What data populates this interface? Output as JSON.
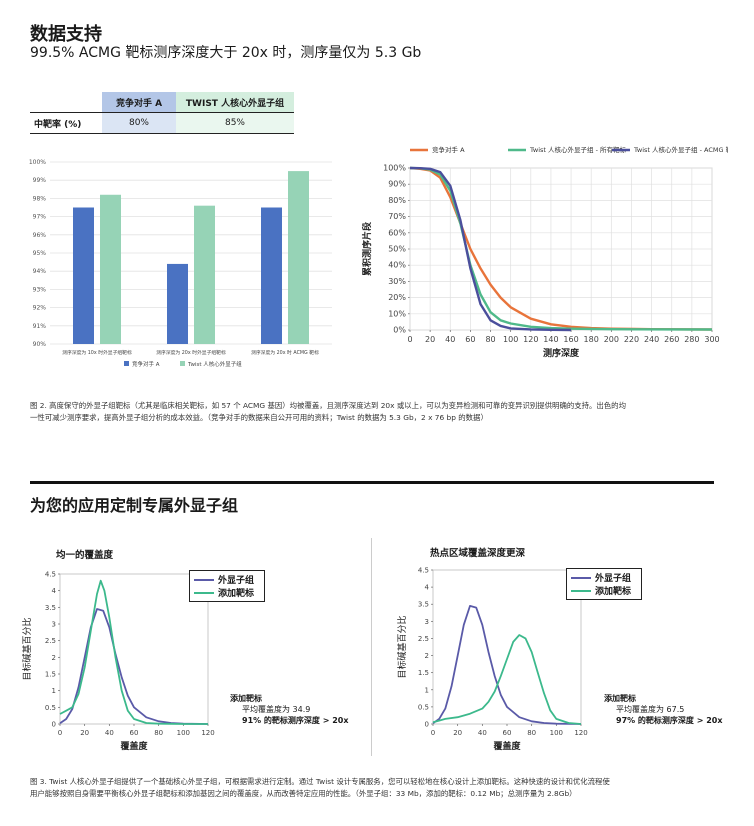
{
  "page": {
    "title": "数据支持",
    "subtitle": "99.5% ACMG 靶标测序深度大于 20x 时，测序量仅为 5.3 Gb"
  },
  "table": {
    "headers": [
      "",
      "竞争对手 A",
      "TWIST 人核心外显子组"
    ],
    "row_label": "中靶率 (%)",
    "values": [
      "80%",
      "85%"
    ]
  },
  "figure2_caption": "图 2. 高度保守的外显子组靶标（尤其是临床相关靶标，如 57 个 ACMG 基因）均被覆盖，且测序深度达到 20x 或以上，可以为变异检测和可靠的变异识别提供明确的支持。出色的均一性可减少测序要求，提高外显子组分析的成本效益。（竞争对手的数据来自公开可用的资料；Twist 的数据为 5.3 Gb，2 x 76 bp 的数据）",
  "section2": {
    "title": "为您的应用定制专属外显子组"
  },
  "figure3_caption": "图 3. Twist 人核心外显子组提供了一个基础核心外显子组，可根据需求进行定制。通过 Twist 设计专属服务，您可以轻松地在核心设计上添加靶标。这种快速的设计和优化流程使用户能够按照自身需要平衡核心外显子组靶标和添加基因之间的覆盖度，从而改善特定应用的性能。（外显子组：33 Mb，添加的靶标：0.12 Mb；总测序量为 2.8Gb）",
  "chart_data": [
    {
      "type": "bar",
      "categories": [
        "测序深度为 10x 时外显子组靶标",
        "测序深度为 20x 时外显子组靶标",
        "测序深度为 20x 时 ACMG 靶标"
      ],
      "series": [
        {
          "name": "竞争对手 A",
          "values": [
            97.5,
            94.4,
            97.5
          ],
          "color": "#4a72c2"
        },
        {
          "name": "Twist 人核心外显子组",
          "values": [
            98.2,
            97.6,
            99.5
          ],
          "color": "#96d3b6"
        }
      ],
      "ylim": [
        90,
        100
      ],
      "yticks": [
        "90%",
        "91%",
        "92%",
        "93%",
        "94%",
        "95%",
        "96%",
        "97%",
        "98%",
        "99%",
        "100%"
      ],
      "grid": true,
      "legend": "bottom"
    },
    {
      "type": "line",
      "xlabel": "测序深度",
      "ylabel": "累积测序片段",
      "xlim": [
        0,
        300
      ],
      "ylim": [
        0,
        100
      ],
      "xticks": [
        "0",
        "20",
        "40",
        "60",
        "80",
        "100",
        "120",
        "140",
        "160",
        "180",
        "200",
        "220",
        "240",
        "260",
        "280",
        "300"
      ],
      "yticks": [
        "0%",
        "10%",
        "20%",
        "30%",
        "40%",
        "50%",
        "60%",
        "70%",
        "80%",
        "90%",
        "100%"
      ],
      "legend_entries": [
        "竞争对手 A",
        "Twist 人核心外显子组 - 所有靶标",
        "Twist 人核心外显子组 - ACMG 靶标"
      ],
      "series": [
        {
          "name": "竞争对手 A",
          "color": "#e8743b",
          "x": [
            0,
            10,
            20,
            30,
            40,
            50,
            60,
            70,
            80,
            90,
            100,
            120,
            140,
            160,
            180,
            200,
            240,
            300
          ],
          "y": [
            100,
            99.5,
            98.5,
            94,
            82,
            66,
            50,
            38,
            28,
            20,
            14,
            7,
            3.5,
            2,
            1.2,
            0.8,
            0.5,
            0.3
          ]
        },
        {
          "name": "Twist 人核心外显子组 - 所有靶标",
          "color": "#4fb98a",
          "x": [
            0,
            10,
            20,
            30,
            40,
            50,
            60,
            70,
            80,
            90,
            100,
            120,
            140,
            160,
            200,
            300
          ],
          "y": [
            100,
            99.8,
            99,
            96,
            86,
            66,
            40,
            22,
            11,
            6,
            4,
            2,
            1.2,
            0.8,
            0.5,
            0.3
          ]
        },
        {
          "name": "Twist 人核心外显子组 - ACMG 靶标",
          "color": "#4b4f9c",
          "x": [
            0,
            10,
            20,
            30,
            40,
            50,
            60,
            70,
            80,
            90,
            100,
            120,
            140,
            160
          ],
          "y": [
            100,
            99.9,
            99.5,
            97.5,
            89,
            68,
            38,
            16,
            6,
            2.5,
            1,
            0.4,
            0.1,
            0
          ]
        }
      ]
    },
    {
      "type": "line",
      "title": "均一的覆盖度",
      "xlabel": "覆盖度",
      "ylabel": "目标碱基百分比",
      "xlim": [
        0,
        120
      ],
      "ylim": [
        0,
        4.5
      ],
      "xticks": [
        "0",
        "20",
        "40",
        "60",
        "80",
        "100",
        "120"
      ],
      "yticks": [
        "0",
        "0.5",
        "1",
        "1.5",
        "2",
        "2.5",
        "3",
        "3.5",
        "4",
        "4.5"
      ],
      "legend_entries": [
        "外显子组",
        "添加靶标"
      ],
      "series": [
        {
          "name": "外显子组",
          "color": "#5a5aa8",
          "x": [
            0,
            5,
            10,
            15,
            20,
            25,
            30,
            35,
            40,
            45,
            50,
            55,
            60,
            70,
            80,
            90,
            100,
            120
          ],
          "y": [
            0.02,
            0.15,
            0.45,
            1.1,
            2.0,
            2.9,
            3.45,
            3.4,
            2.9,
            2.1,
            1.4,
            0.85,
            0.5,
            0.2,
            0.08,
            0.03,
            0.01,
            0
          ]
        },
        {
          "name": "添加靶标",
          "color": "#3cb98c",
          "x": [
            0,
            5,
            10,
            15,
            20,
            25,
            30,
            33,
            36,
            40,
            45,
            50,
            55,
            60,
            70,
            80,
            100,
            120
          ],
          "y": [
            0.3,
            0.4,
            0.5,
            0.9,
            1.7,
            2.8,
            3.9,
            4.3,
            4.0,
            3.2,
            2.0,
            1.0,
            0.4,
            0.15,
            0.03,
            0.01,
            0,
            0
          ]
        }
      ],
      "note": {
        "heading": "添加靶标",
        "line1": "平均覆盖度为 34.9",
        "line2": "91% 的靶标测序深度 > 20x"
      }
    },
    {
      "type": "line",
      "title": "热点区域覆盖深度更深",
      "xlabel": "覆盖度",
      "ylabel": "目标碱基百分比",
      "xlim": [
        0,
        120
      ],
      "ylim": [
        0,
        4.5
      ],
      "xticks": [
        "0",
        "20",
        "40",
        "60",
        "80",
        "100",
        "120"
      ],
      "yticks": [
        "0",
        "0.5",
        "1",
        "1.5",
        "2",
        "2.5",
        "3",
        "3.5",
        "4",
        "4.5"
      ],
      "legend_entries": [
        "外显子组",
        "添加靶标"
      ],
      "series": [
        {
          "name": "外显子组",
          "color": "#5a5aa8",
          "x": [
            0,
            5,
            10,
            15,
            20,
            25,
            30,
            35,
            40,
            45,
            50,
            55,
            60,
            70,
            80,
            90,
            100,
            120
          ],
          "y": [
            0.02,
            0.15,
            0.45,
            1.1,
            2.0,
            2.9,
            3.45,
            3.4,
            2.9,
            2.1,
            1.4,
            0.85,
            0.5,
            0.2,
            0.08,
            0.03,
            0.01,
            0
          ]
        },
        {
          "name": "添加靶标",
          "color": "#3cb98c",
          "x": [
            0,
            5,
            10,
            20,
            30,
            40,
            45,
            50,
            55,
            60,
            65,
            70,
            75,
            80,
            85,
            90,
            95,
            100,
            110,
            120
          ],
          "y": [
            0.05,
            0.1,
            0.15,
            0.2,
            0.3,
            0.45,
            0.65,
            0.95,
            1.4,
            1.9,
            2.4,
            2.6,
            2.5,
            2.1,
            1.5,
            0.9,
            0.4,
            0.15,
            0.03,
            0
          ]
        }
      ],
      "note": {
        "heading": "添加靶标",
        "line1": "平均覆盖度为 67.5",
        "line2": "97% 的靶标测序深度 > 20x"
      }
    }
  ]
}
